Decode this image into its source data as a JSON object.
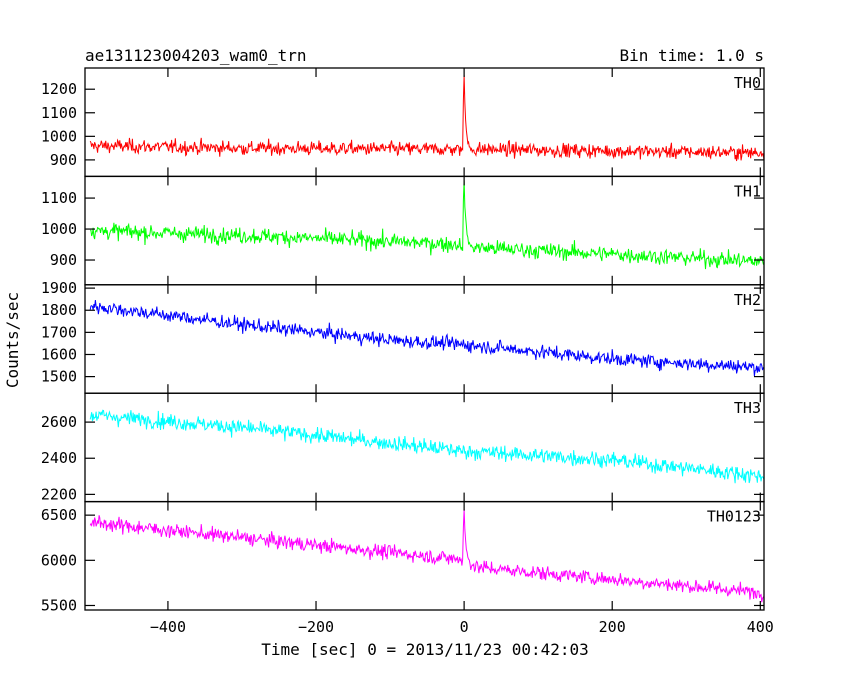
{
  "chart_data": {
    "type": "line",
    "title_left": "ae131123004203_wam0_trn",
    "title_right": "Bin time: 1.0 s",
    "xlabel": "Time [sec] 0 = 2013/11/23 00:42:03",
    "ylabel": "Counts/sec",
    "xlim": [
      -512,
      405
    ],
    "x_ticks": [
      -400,
      -200,
      0,
      200,
      400
    ],
    "x_tick_labels": [
      "−400",
      "−200",
      "0",
      "200",
      "400"
    ],
    "bin_time": 1.0,
    "grid": false,
    "panels": [
      {
        "name": "TH0",
        "color": "#ff0000",
        "ylim": [
          830,
          1290
        ],
        "y_ticks": [
          900,
          1000,
          1100,
          1200
        ],
        "y_tick_labels": [
          "900",
          "1000",
          "1100",
          "1200"
        ],
        "trend": [
          [
            -505,
            960
          ],
          [
            -300,
            950
          ],
          [
            -5,
            945
          ],
          [
            20,
            945
          ],
          [
            405,
            930
          ]
        ],
        "noise": 38,
        "peak": {
          "x": 0,
          "value": 1270
        }
      },
      {
        "name": "TH1",
        "color": "#00ff00",
        "ylim": [
          820,
          1170
        ],
        "y_ticks": [
          900,
          1000,
          1100
        ],
        "y_tick_labels": [
          "900",
          "1000",
          "1100"
        ],
        "trend": [
          [
            -505,
            995
          ],
          [
            -250,
            975
          ],
          [
            -5,
            950
          ],
          [
            20,
            940
          ],
          [
            405,
            895
          ]
        ],
        "noise": 33,
        "peak": {
          "x": 0,
          "value": 1160
        }
      },
      {
        "name": "TH2",
        "color": "#0000ff",
        "ylim": [
          1425,
          1915
        ],
        "y_ticks": [
          1500,
          1600,
          1700,
          1800,
          1900
        ],
        "y_tick_labels": [
          "1500",
          "1600",
          "1700",
          "1800",
          "1900"
        ],
        "trend": [
          [
            -505,
            1820
          ],
          [
            -300,
            1735
          ],
          [
            -100,
            1665
          ],
          [
            0,
            1645
          ],
          [
            200,
            1580
          ],
          [
            405,
            1540
          ]
        ],
        "noise": 40
      },
      {
        "name": "TH3",
        "color": "#00ffff",
        "ylim": [
          2160,
          2760
        ],
        "y_ticks": [
          2200,
          2400,
          2600
        ],
        "y_tick_labels": [
          "2200",
          "2400",
          "2600"
        ],
        "trend": [
          [
            -505,
            2640
          ],
          [
            -300,
            2570
          ],
          [
            0,
            2440
          ],
          [
            200,
            2390
          ],
          [
            405,
            2300
          ]
        ],
        "noise": 55
      },
      {
        "name": "TH0123",
        "color": "#ff00ff",
        "ylim": [
          5450,
          6650
        ],
        "y_ticks": [
          5500,
          6000,
          6500
        ],
        "y_tick_labels": [
          "5500",
          "6000",
          "6500"
        ],
        "trend": [
          [
            -505,
            6420
          ],
          [
            -300,
            6250
          ],
          [
            -5,
            6010
          ],
          [
            20,
            5920
          ],
          [
            405,
            5640
          ]
        ],
        "noise": 100,
        "peak": {
          "x": 0,
          "value": 6560
        }
      }
    ]
  }
}
